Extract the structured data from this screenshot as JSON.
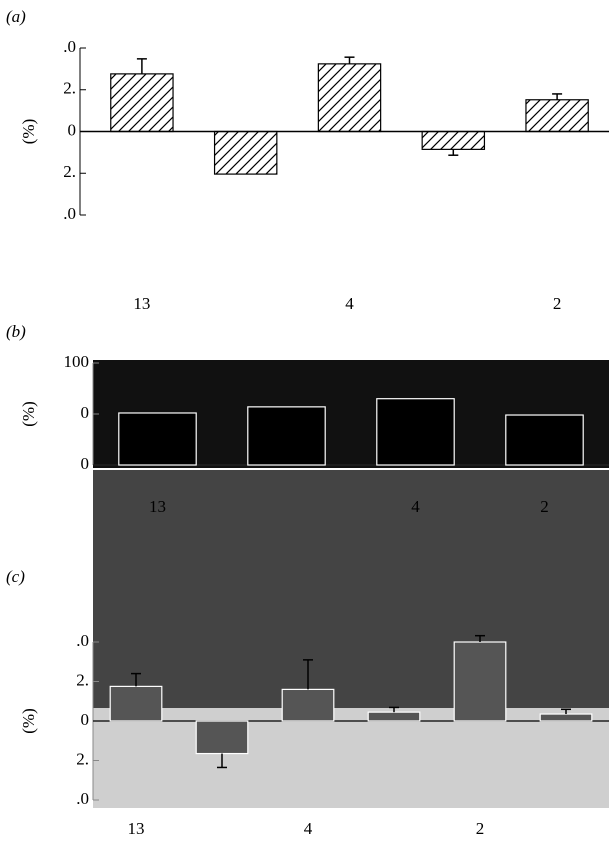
{
  "chart_data": [
    {
      "type": "bar",
      "panel_label": "(a)",
      "ylabel": "(%)",
      "categories": [
        "13",
        null,
        "4",
        null,
        "2"
      ],
      "values": [
        3.45,
        -2.55,
        4.05,
        -1.07,
        1.9
      ],
      "errors": [
        0.9,
        null,
        0.4,
        0.35,
        0.35
      ],
      "color": "#ffffff",
      "hatch": true,
      "ylim": [
        -5,
        5
      ],
      "yticks": [
        {
          "value": 5,
          "label": ".0"
        },
        {
          "value": 2.5,
          "label": "2."
        },
        0,
        {
          "value": -2.5,
          "label": "2."
        },
        {
          "value": -5,
          "label": ".0"
        }
      ]
    },
    {
      "type": "bar",
      "panel_label": "(b)",
      "ylabel": "(%)",
      "categories": [
        "13",
        null,
        "4",
        "2"
      ],
      "values": [
        51,
        57,
        65,
        49
      ],
      "color": "#000000",
      "hatch": false,
      "ylim": [
        0,
        100
      ],
      "yticks": [
        100,
        {
          "value": 50,
          "label": "0"
        },
        0
      ]
    },
    {
      "type": "bar",
      "panel_label": "(c)",
      "ylabel": "(%)",
      "categories": [
        "13",
        null,
        "4",
        null,
        "2",
        null
      ],
      "values": [
        2.19,
        -2.06,
        2.0,
        0.56,
        5.0,
        0.44
      ],
      "errors": [
        0.81,
        0.88,
        1.87,
        0.3,
        0.4,
        0.3
      ],
      "color": "#555555",
      "hatch": false,
      "ylim": [
        -5,
        5
      ],
      "yticks": [
        {
          "value": 5,
          "label": ".0"
        },
        {
          "value": 2.5,
          "label": "2."
        },
        0,
        {
          "value": -2.5,
          "label": "2."
        },
        {
          "value": -5,
          "label": ".0"
        }
      ]
    }
  ]
}
